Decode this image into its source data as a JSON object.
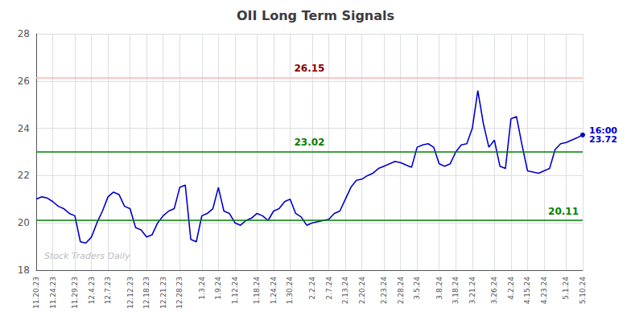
{
  "chart_data": {
    "type": "line",
    "title": "OII Long Term Signals",
    "color": "#0000cc",
    "categories": [
      "11.20.23",
      null,
      null,
      "11.24.23",
      null,
      null,
      null,
      "11.29.23",
      null,
      null,
      "12.4.23",
      null,
      null,
      "12.7.23",
      null,
      null,
      null,
      "12.12.23",
      null,
      null,
      "12.18.23",
      null,
      null,
      "12.21.23",
      null,
      null,
      "12.28.23",
      null,
      null,
      null,
      "1.3.24",
      null,
      null,
      "1.9.24",
      null,
      null,
      "1.12.24",
      null,
      null,
      null,
      "1.18.24",
      null,
      null,
      "1.24.24",
      null,
      null,
      "1.30.24",
      null,
      null,
      null,
      "2.2.24",
      null,
      null,
      "2.7.24",
      null,
      null,
      "2.13.24",
      null,
      null,
      "2.20.24",
      null,
      null,
      null,
      "2.23.24",
      null,
      null,
      "2.28.24",
      null,
      null,
      "3.5.24",
      null,
      null,
      null,
      "3.8.24",
      null,
      null,
      "3.18.24",
      null,
      null,
      "3.21.24",
      null,
      null,
      null,
      "3.26.24",
      null,
      null,
      "4.2.24",
      null,
      null,
      "4.15.24",
      null,
      null,
      "4.23.24",
      null,
      null,
      null,
      "5.1.24",
      null,
      null,
      "5.10.24"
    ],
    "values": [
      21.0,
      21.1,
      21.05,
      20.9,
      20.7,
      20.6,
      20.4,
      20.3,
      19.2,
      19.15,
      19.4,
      20.0,
      20.5,
      21.1,
      21.3,
      21.2,
      20.7,
      20.6,
      19.8,
      19.7,
      19.4,
      19.5,
      20.0,
      20.3,
      20.5,
      20.6,
      21.5,
      21.6,
      19.3,
      19.2,
      20.3,
      20.4,
      20.6,
      21.5,
      20.5,
      20.4,
      20.0,
      19.9,
      20.1,
      20.2,
      20.4,
      20.3,
      20.1,
      20.5,
      20.6,
      20.9,
      21.0,
      20.4,
      20.25,
      19.9,
      20.0,
      20.05,
      20.1,
      20.15,
      20.4,
      20.5,
      21.0,
      21.5,
      21.8,
      21.85,
      22.0,
      22.1,
      22.3,
      22.4,
      22.5,
      22.6,
      22.55,
      22.45,
      22.35,
      23.2,
      23.3,
      23.35,
      23.2,
      22.5,
      22.4,
      22.5,
      23.0,
      23.3,
      23.35,
      24.0,
      25.6,
      24.2,
      23.2,
      23.5,
      22.4,
      22.3,
      24.4,
      24.5,
      23.3,
      22.2,
      22.15,
      22.1,
      22.2,
      22.3,
      23.1,
      23.35,
      23.4,
      23.5,
      23.6,
      23.72
    ],
    "ylim": [
      18,
      28
    ],
    "yticks": [
      18,
      20,
      22,
      24,
      26,
      28
    ],
    "grid": true,
    "lines": [
      {
        "value": 26.15,
        "label": "26.15",
        "color": "#ffb3b3",
        "label_color": "#8b0000"
      },
      {
        "value": 23.02,
        "label": "23.02",
        "color": "#008000",
        "label_color": "#008000"
      },
      {
        "value": 20.11,
        "label": "20.11",
        "color": "#008000",
        "label_color": "#008000"
      }
    ],
    "annotation": [
      "16:00",
      "23.72"
    ],
    "watermark": "Stock Traders Daily"
  }
}
